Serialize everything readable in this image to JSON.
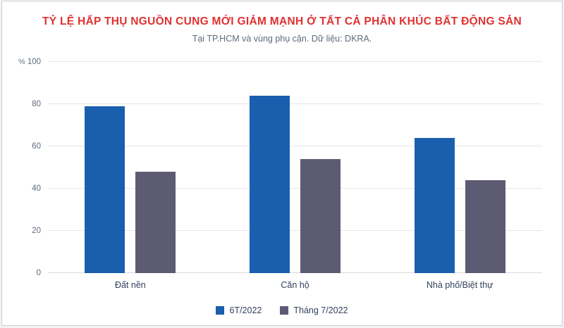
{
  "chart_data": {
    "type": "bar",
    "title": "TỶ LỆ HẤP THỤ NGUỒN CUNG MỚI GIẢM MẠNH Ở TẤT CẢ PHÂN KHÚC BẤT ĐỘNG SẢN",
    "subtitle": "Tại TP.HCM và vùng phụ cận. Dữ liệu: DKRA.",
    "ylabel": "%",
    "xlabel": "",
    "ylim": [
      0,
      100
    ],
    "yticks": [
      0,
      20,
      40,
      60,
      80,
      100
    ],
    "grid": true,
    "legend_position": "bottom",
    "categories": [
      "Đất nền",
      "Căn hộ",
      "Nhà phố/Biệt thự"
    ],
    "series": [
      {
        "name": "6T/2022",
        "color": "#1a5fae",
        "values": [
          79,
          84,
          64
        ]
      },
      {
        "name": "Tháng 7/2022",
        "color": "#5d5a74",
        "values": [
          48,
          54,
          44
        ]
      }
    ],
    "colors": {
      "title": "#e03131",
      "subtitle": "#5f6b7a",
      "axis_text": "#5f6b7a",
      "category_text": "#33415c",
      "gridline": "#e6e6e6",
      "background": "#ffffff"
    }
  }
}
